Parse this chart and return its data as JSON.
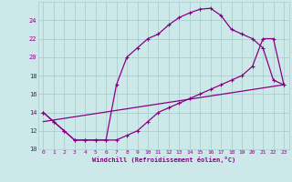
{
  "xlabel": "Windchill (Refroidissement éolien,°C)",
  "background_color": "#cce8e8",
  "grid_color": "#aacfcf",
  "line_color": "#880088",
  "xlim": [
    -0.5,
    23.5
  ],
  "ylim": [
    10,
    26
  ],
  "xticks": [
    0,
    1,
    2,
    3,
    4,
    5,
    6,
    7,
    8,
    9,
    10,
    11,
    12,
    13,
    14,
    15,
    16,
    17,
    18,
    19,
    20,
    21,
    22,
    23
  ],
  "yticks": [
    10,
    12,
    14,
    16,
    18,
    20,
    22,
    24
  ],
  "line1_x": [
    0,
    1,
    2,
    3,
    4,
    5,
    6,
    7,
    8,
    9,
    10,
    11,
    12,
    13,
    14,
    15,
    16,
    17,
    18,
    19,
    20,
    21,
    22,
    23
  ],
  "line1_y": [
    14,
    13,
    12,
    11,
    11,
    11,
    11,
    17,
    20,
    21,
    22,
    22.5,
    23.5,
    24.3,
    24.8,
    25.2,
    25.3,
    24.5,
    23,
    22.5,
    22,
    21,
    17.5,
    17
  ],
  "line2_x": [
    0,
    1,
    2,
    3,
    4,
    5,
    6,
    7,
    8,
    9,
    10,
    11,
    12,
    13,
    14,
    15,
    16,
    17,
    18,
    19,
    20,
    21,
    22,
    23
  ],
  "line2_y": [
    14,
    13,
    12,
    11,
    11,
    11,
    11,
    11,
    11.5,
    12,
    13,
    14,
    14.5,
    15,
    15.5,
    16,
    16.5,
    17,
    17.5,
    18,
    19,
    22,
    22,
    17
  ],
  "line3_x": [
    0,
    23
  ],
  "line3_y": [
    13,
    17
  ]
}
